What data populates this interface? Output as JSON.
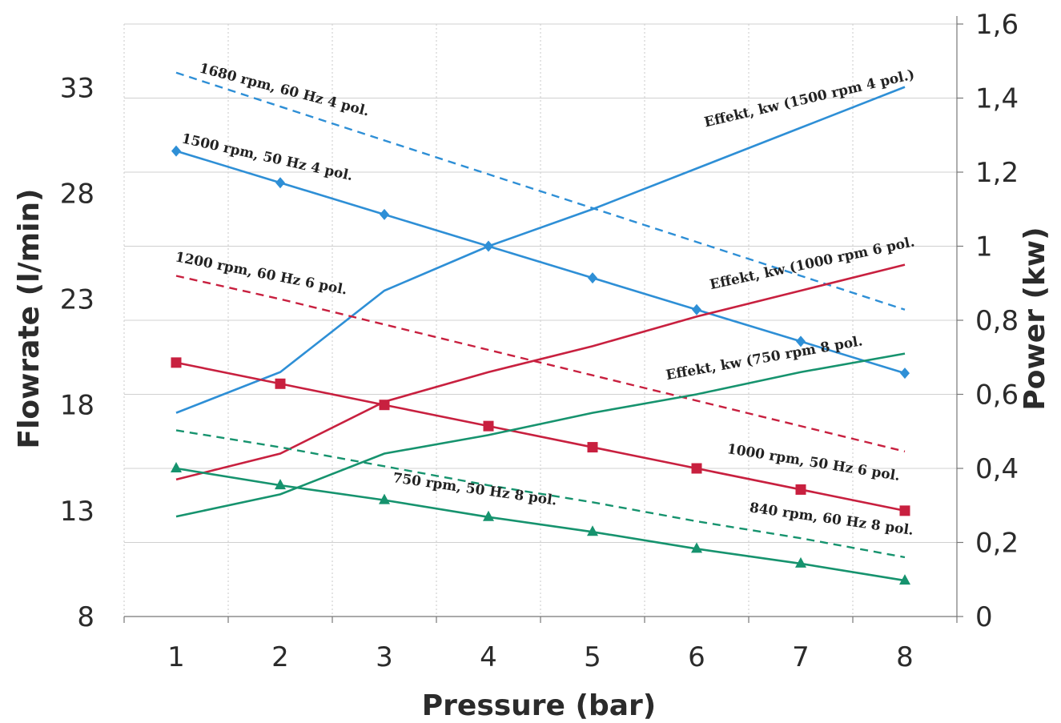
{
  "chart_data": {
    "type": "line",
    "xlabel": "Pressure (bar)",
    "ylabel": "Flowrate (l/min)",
    "y2label": "Power (kw)",
    "x": [
      1,
      2,
      3,
      4,
      5,
      6,
      7,
      8
    ],
    "x_ticks": [
      "1",
      "2",
      "3",
      "4",
      "5",
      "6",
      "7",
      "8"
    ],
    "xlim": [
      0.5,
      8.5
    ],
    "ylim": [
      8,
      36
    ],
    "y_ticks": [
      "8",
      "13",
      "18",
      "23",
      "28",
      "33"
    ],
    "y_tick_values": [
      8,
      13,
      18,
      23,
      28,
      33
    ],
    "y2lim": [
      0,
      1.6
    ],
    "y2_ticks": [
      "0",
      "0,2",
      "0,4",
      "0,6",
      "0,8",
      "1",
      "1,2",
      "1,4",
      "1,6"
    ],
    "y2_tick_values": [
      0,
      0.2,
      0.4,
      0.6,
      0.8,
      1.0,
      1.2,
      1.4,
      1.6
    ],
    "grid": true,
    "series": [
      {
        "name": "1680 rpm, 60 Hz 4 pol.",
        "axis": "left",
        "style": "dashed",
        "color": "#2e8fd6",
        "marker": "none",
        "values": [
          33.7,
          32.1,
          30.5,
          28.9,
          27.3,
          25.7,
          24.1,
          22.5
        ]
      },
      {
        "name": "1500 rpm, 50 Hz 4 pol.",
        "axis": "left",
        "style": "solid",
        "color": "#2e8fd6",
        "marker": "diamond",
        "values": [
          30.0,
          28.5,
          27.0,
          25.5,
          24.0,
          22.5,
          21.0,
          19.5
        ]
      },
      {
        "name": "Effekt, kw (1500 rpm 4 pol.)",
        "axis": "right",
        "style": "solid",
        "color": "#2e8fd6",
        "marker": "none",
        "values": [
          0.55,
          0.66,
          0.88,
          1.0,
          1.1,
          1.21,
          1.32,
          1.43
        ]
      },
      {
        "name": "1200 rpm, 60 Hz 6 pol.",
        "axis": "left",
        "style": "dashed",
        "color": "#c8203f",
        "marker": "none",
        "values": [
          24.1,
          23.0,
          21.8,
          20.6,
          19.4,
          18.2,
          17.0,
          15.8
        ]
      },
      {
        "name": "1000 rpm, 50 Hz 6 pol.",
        "axis": "left",
        "style": "solid",
        "color": "#c8203f",
        "marker": "square",
        "values": [
          20.0,
          19.0,
          18.0,
          17.0,
          16.0,
          15.0,
          14.0,
          13.0
        ]
      },
      {
        "name": "Effekt, kw (1000 rpm 6 pol.",
        "axis": "right",
        "style": "solid",
        "color": "#c8203f",
        "marker": "none",
        "values": [
          0.37,
          0.44,
          0.58,
          0.66,
          0.73,
          0.81,
          0.88,
          0.95
        ]
      },
      {
        "name": "840 rpm, 60 Hz 8 pol.",
        "axis": "left",
        "style": "dashed",
        "color": "#16936e",
        "marker": "none",
        "values": [
          16.8,
          16.0,
          15.1,
          14.2,
          13.4,
          12.5,
          11.7,
          10.8
        ]
      },
      {
        "name": "750 rpm, 50 Hz 8 pol.",
        "axis": "left",
        "style": "solid",
        "color": "#16936e",
        "marker": "triangle",
        "values": [
          15.0,
          14.2,
          13.5,
          12.7,
          12.0,
          11.2,
          10.5,
          9.7
        ]
      },
      {
        "name": "Effekt, kw (750 rpm 8 pol.",
        "axis": "right",
        "style": "solid",
        "color": "#16936e",
        "marker": "none",
        "values": [
          0.27,
          0.33,
          0.44,
          0.49,
          0.55,
          0.6,
          0.66,
          0.71
        ]
      }
    ]
  }
}
